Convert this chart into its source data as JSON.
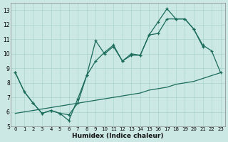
{
  "xlabel": "Humidex (Indice chaleur)",
  "bg_color": "#cce8e5",
  "line_color": "#1a6b5a",
  "grid_color": "#aad4ce",
  "xlim": [
    -0.5,
    23.5
  ],
  "ylim": [
    5,
    13.5
  ],
  "xticks": [
    0,
    1,
    2,
    3,
    4,
    5,
    6,
    7,
    8,
    9,
    10,
    11,
    12,
    13,
    14,
    15,
    16,
    17,
    18,
    19,
    20,
    21,
    22,
    23
  ],
  "yticks": [
    5,
    6,
    7,
    8,
    9,
    10,
    11,
    12,
    13
  ],
  "s1x": [
    0,
    1,
    2,
    3,
    4,
    5,
    6,
    7,
    8,
    9,
    10,
    11,
    12,
    13,
    14,
    15,
    16,
    17,
    18,
    19,
    20,
    21
  ],
  "s1y": [
    8.7,
    7.4,
    6.6,
    5.9,
    6.1,
    5.9,
    5.4,
    6.9,
    8.5,
    10.9,
    10.0,
    10.5,
    9.5,
    9.9,
    9.9,
    11.3,
    12.2,
    13.1,
    12.4,
    12.4,
    11.7,
    10.5
  ],
  "s2x": [
    0,
    1,
    2,
    3,
    4,
    5,
    6,
    7,
    8,
    9,
    10,
    11,
    12,
    13,
    14,
    15,
    16,
    17,
    18,
    19,
    20,
    21,
    22,
    23
  ],
  "s2y": [
    8.7,
    7.4,
    6.6,
    5.9,
    6.1,
    5.9,
    5.8,
    6.6,
    8.5,
    9.5,
    10.1,
    10.6,
    9.5,
    10.0,
    9.9,
    11.3,
    11.4,
    12.4,
    12.4,
    12.4,
    11.7,
    10.6,
    10.2,
    8.7
  ],
  "s3x": [
    0,
    1,
    2,
    3,
    4,
    5,
    6,
    7,
    8,
    9,
    10,
    11,
    12,
    13,
    14,
    15,
    16,
    17,
    18,
    19,
    20,
    21,
    22,
    23
  ],
  "s3y": [
    5.9,
    6.0,
    6.1,
    6.2,
    6.3,
    6.4,
    6.5,
    6.6,
    6.7,
    6.8,
    6.9,
    7.0,
    7.1,
    7.2,
    7.3,
    7.5,
    7.6,
    7.7,
    7.9,
    8.0,
    8.1,
    8.3,
    8.5,
    8.7
  ],
  "figsize": [
    3.2,
    2.0
  ],
  "dpi": 100
}
